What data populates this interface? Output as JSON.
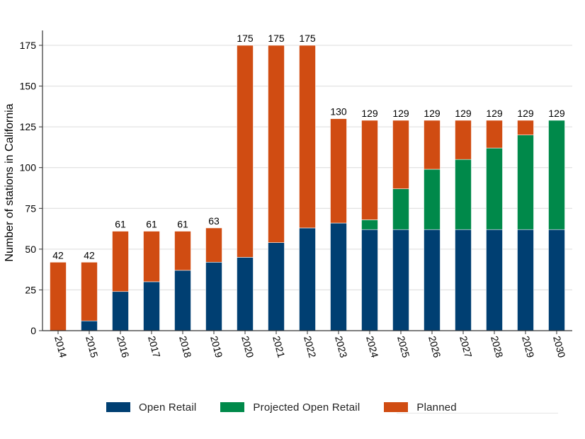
{
  "chart_data": {
    "type": "bar",
    "stacked": true,
    "ylabel": "Number of stations in California",
    "xlabel": "",
    "ylim": [
      0,
      185
    ],
    "yticks": [
      0,
      25,
      50,
      75,
      100,
      125,
      150,
      175
    ],
    "grid": true,
    "legend_position": "bottom",
    "categories": [
      "2014",
      "2015",
      "2016",
      "2017",
      "2018",
      "2019",
      "2020",
      "2021",
      "2022",
      "2023",
      "2024",
      "2025",
      "2026",
      "2027",
      "2028",
      "2029",
      "2030"
    ],
    "series": [
      {
        "name": "Open Retail",
        "color": "#003f72",
        "values": [
          0,
          6,
          24,
          30,
          37,
          42,
          45,
          54,
          63,
          66,
          62,
          62,
          62,
          62,
          62,
          62,
          62
        ]
      },
      {
        "name": "Projected Open Retail",
        "color": "#00894a",
        "values": [
          0,
          0,
          0,
          0,
          0,
          0,
          0,
          0,
          0,
          0,
          6,
          25,
          37,
          43,
          50,
          58,
          67
        ]
      },
      {
        "name": "Planned",
        "color": "#d04c12",
        "values": [
          42,
          36,
          37,
          31,
          24,
          21,
          130,
          121,
          112,
          64,
          61,
          42,
          30,
          24,
          17,
          9,
          0
        ]
      }
    ],
    "totals": [
      42,
      42,
      61,
      61,
      61,
      63,
      175,
      175,
      175,
      130,
      129,
      129,
      129,
      129,
      129,
      129,
      129
    ]
  }
}
